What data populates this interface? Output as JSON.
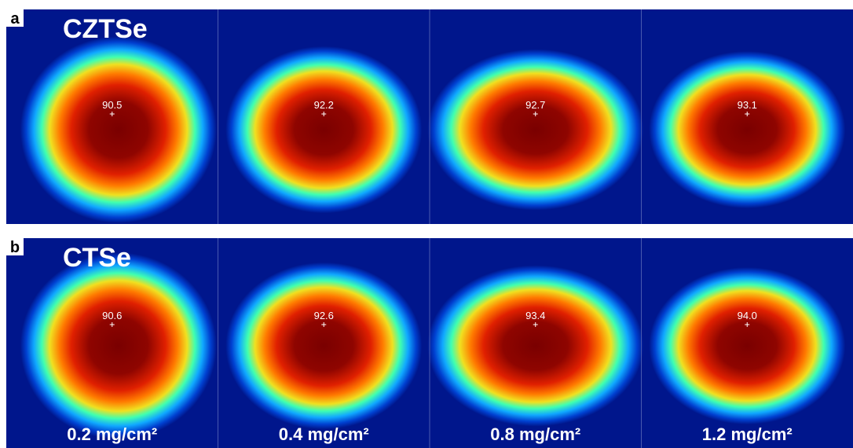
{
  "panels": [
    {
      "label": "a",
      "title": "CZTSe",
      "tiles": [
        "90.5",
        "92.2",
        "92.7",
        "93.1"
      ]
    },
    {
      "label": "b",
      "title": "CTSe",
      "tiles": [
        "90.6",
        "92.6",
        "93.4",
        "94.0"
      ]
    }
  ],
  "doses": [
    "0.2 mg/cm²",
    "0.4 mg/cm²",
    "0.8 mg/cm²",
    "1.2 mg/cm²"
  ]
}
